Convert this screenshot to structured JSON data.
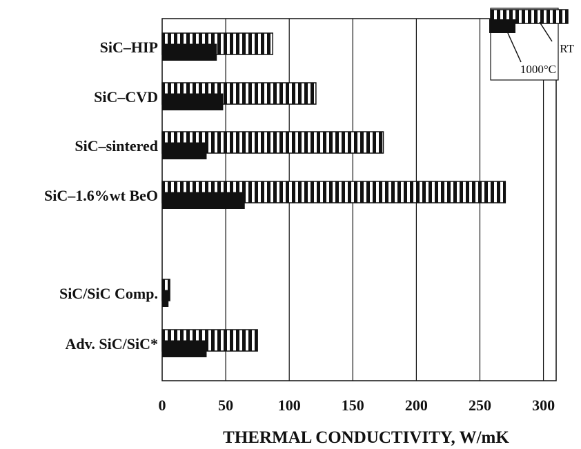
{
  "chart_data": {
    "type": "bar",
    "orientation": "horizontal",
    "title": "",
    "xlabel": "THERMAL CONDUCTIVITY, W/mK",
    "ylabel": "",
    "xlim": [
      0,
      310
    ],
    "xticks": [
      0,
      50,
      100,
      150,
      200,
      250,
      300
    ],
    "grid": "vertical",
    "legend_position": "top-right",
    "categories": [
      "SiC–HIP",
      "SiC–CVD",
      "SiC–sintered",
      "SiC–1.6%wt BeO",
      "SiC/SiC Comp.",
      "Adv. SiC/SiC*"
    ],
    "series": [
      {
        "name": "RT",
        "pattern": "vertical-stripes",
        "color": "#111111",
        "values": [
          87,
          121,
          174,
          270,
          6,
          75
        ]
      },
      {
        "name": "1000°C",
        "pattern": "solid",
        "color": "#111111",
        "values": [
          43,
          48,
          35,
          65,
          5,
          35
        ]
      }
    ]
  }
}
